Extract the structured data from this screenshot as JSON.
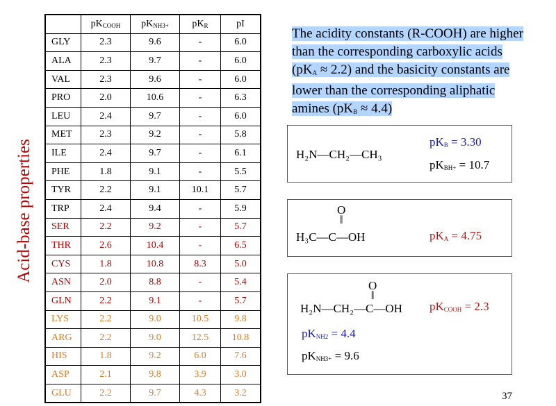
{
  "side_title": "Acid-base properties",
  "table": {
    "headers": [
      {
        "base": "",
        "sub": ""
      },
      {
        "base": "pK",
        "sub": "COOH"
      },
      {
        "base": "pK",
        "sub": "NH3+"
      },
      {
        "base": "pK",
        "sub": "R"
      },
      {
        "base": "pI",
        "sub": ""
      }
    ],
    "rows": [
      {
        "name": "GLY",
        "v": [
          "2.3",
          "9.6",
          "-",
          "6.0"
        ],
        "color": "black"
      },
      {
        "name": "ALA",
        "v": [
          "2.3",
          "9.7",
          "-",
          "6.0"
        ],
        "color": "black"
      },
      {
        "name": "VAL",
        "v": [
          "2.3",
          "9.6",
          "-",
          "6.0"
        ],
        "color": "black"
      },
      {
        "name": "PRO",
        "v": [
          "2.0",
          "10.6",
          "-",
          "6.3"
        ],
        "color": "black"
      },
      {
        "name": "LEU",
        "v": [
          "2.4",
          "9.7",
          "-",
          "6.0"
        ],
        "color": "black"
      },
      {
        "name": "MET",
        "v": [
          "2.3",
          "9.2",
          "-",
          "5.8"
        ],
        "color": "black"
      },
      {
        "name": "ILE",
        "v": [
          "2.4",
          "9.7",
          "-",
          "6.1"
        ],
        "color": "black"
      },
      {
        "name": "PHE",
        "v": [
          "1.8",
          "9.1",
          "-",
          "5.5"
        ],
        "color": "black"
      },
      {
        "name": "TYR",
        "v": [
          "2.2",
          "9.1",
          "10.1",
          "5.7"
        ],
        "color": "black"
      },
      {
        "name": "TRP",
        "v": [
          "2.4",
          "9.4",
          "-",
          "5.9"
        ],
        "color": "black"
      },
      {
        "name": "SER",
        "v": [
          "2.2",
          "9.2",
          "-",
          "5.7"
        ],
        "color": "red"
      },
      {
        "name": "THR",
        "v": [
          "2.6",
          "10.4",
          "-",
          "6.5"
        ],
        "color": "red"
      },
      {
        "name": "CYS",
        "v": [
          "1.8",
          "10.8",
          "8.3",
          "5.0"
        ],
        "color": "red"
      },
      {
        "name": "ASN",
        "v": [
          "2.0",
          "8.8",
          "-",
          "5.4"
        ],
        "color": "red"
      },
      {
        "name": "GLN",
        "v": [
          "2.2",
          "9.1",
          "-",
          "5.7"
        ],
        "color": "red"
      },
      {
        "name": "LYS",
        "v": [
          "2.2",
          "9.0",
          "10.5",
          "9.8"
        ],
        "color": "orange"
      },
      {
        "name": "ARG",
        "v": [
          "2.2",
          "9.0",
          "12.5",
          "10.8"
        ],
        "color": "orange"
      },
      {
        "name": "HIS",
        "v": [
          "1.8",
          "9.2",
          "6.0",
          "7.6"
        ],
        "color": "orange"
      },
      {
        "name": "ASP",
        "v": [
          "2.1",
          "9.8",
          "3.9",
          "3.0"
        ],
        "color": "orange"
      },
      {
        "name": "GLU",
        "v": [
          "2.2",
          "9.7",
          "4.3",
          "3.2"
        ],
        "color": "orange"
      }
    ]
  },
  "paragraph": {
    "l1": "The acidity constants (R-COOH) are higher",
    "l2": "than the corresponding carboxylic acids",
    "l3a": "(pK",
    "l3s": "A",
    "l3b": " ≈ 2.2) and the basicity constants are",
    "l4": "lower than the corresponding aliphatic",
    "l5a": "amines (pK",
    "l5s": "B",
    "l5b": " ≈ 4.4)"
  },
  "box1": {
    "formula": "H₂N—CH₂—CH₃",
    "pkb_sub": "B",
    "pkb_val": " = 3.30",
    "pkbh_sub": "BH+",
    "pkbh_val": " = 10.7"
  },
  "box2": {
    "o": "O",
    "dbl": "‖",
    "formula": "H₃C—C—OH",
    "pka_sub": "A",
    "pka_val": " = 4.75"
  },
  "box3": {
    "o": "O",
    "dbl": "‖",
    "formula": "H₂N—CH₂—C—OH",
    "cooh_sub": "COOH",
    "cooh_val": "  = 2.3",
    "nh2_sub": "NH2",
    "nh2_val": "  = 4.4",
    "nh3_sub": "NH3+",
    "nh3_val": "  = 9.6"
  },
  "pk": "pK",
  "page_number": "37",
  "colors": {
    "red": "#b00000",
    "orange": "#e07b24",
    "blue": "#1a1ab0",
    "highlight": "#b4d5fe"
  }
}
